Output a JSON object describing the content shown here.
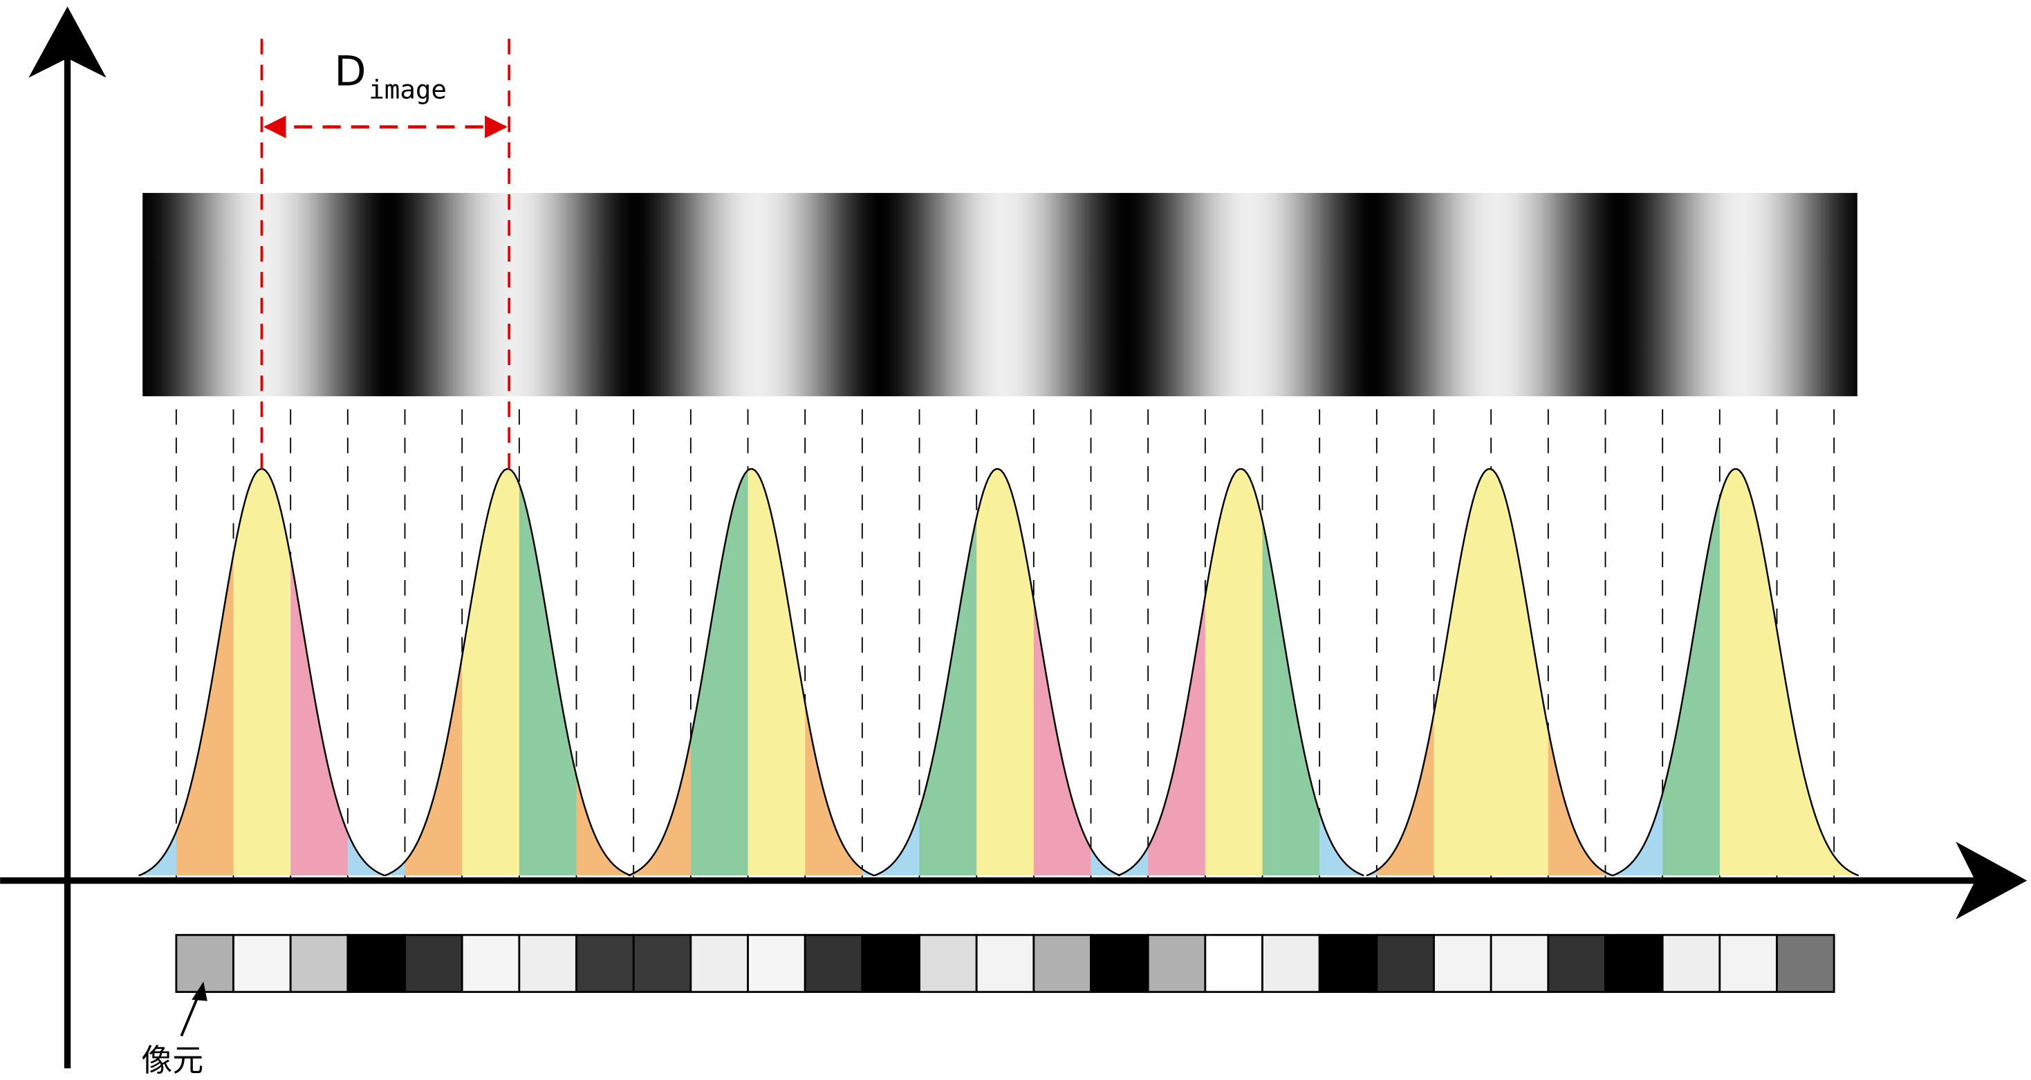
{
  "labels": {
    "dimension_main": "D",
    "dimension_sub": "image",
    "pixel": "像元"
  }
}
